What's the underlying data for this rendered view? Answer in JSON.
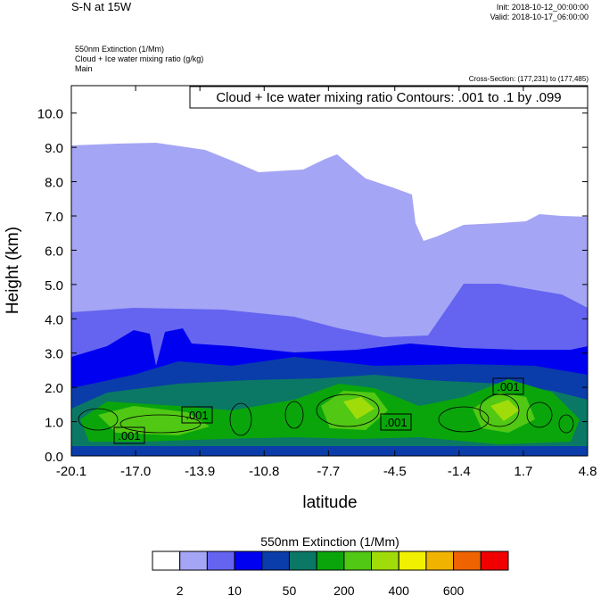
{
  "chart_data": {
    "type": "contour",
    "title": "S-N at 15W",
    "init": "Init: 2018-10-12_00:00:00",
    "valid": "Valid: 2018-10-17_06:00:00",
    "subtitles": [
      "550nm Extinction   (1/Mm)",
      "Cloud + Ice water mixing ratio   (g/kg)",
      "Main"
    ],
    "cross_section": "Cross-Section: (177,231) to (177,485)",
    "contour_note": "Cloud + Ice water mixing ratio Contours: .001 to .1 by .099",
    "contour_labels": [
      ".001",
      ".001",
      ".001",
      ".001"
    ],
    "x_label": "latitude",
    "y_label": "Height (km)",
    "xlim": [
      -20.1,
      4.8
    ],
    "xticks": [
      -20.1,
      {
        "value": -17.0,
        "label": "-17.0"
      },
      -13.9,
      -10.8,
      -7.7,
      -4.5,
      -1.4,
      1.7,
      4.8
    ],
    "ylim": [
      0,
      10.8
    ],
    "yticks": [
      {
        "value": 0,
        "label": "0.0"
      },
      {
        "value": 1,
        "label": "1.0"
      },
      {
        "value": 2,
        "label": "2.0"
      },
      {
        "value": 3,
        "label": "3.0"
      },
      {
        "value": 4,
        "label": "4.0"
      },
      {
        "value": 5,
        "label": "5.0"
      },
      {
        "value": 6,
        "label": "6.0"
      },
      {
        "value": 7,
        "label": "7.0"
      },
      {
        "value": 8,
        "label": "8.0"
      },
      {
        "value": 9,
        "label": "9.0"
      },
      {
        "value": 10,
        "label": "10.0"
      }
    ],
    "colorbar": {
      "title": "550nm Extinction  (1/Mm)",
      "colors": [
        "#ffffff",
        "#a5a5f5",
        "#6464f0",
        "#0000f0",
        "#0a3caa",
        "#0a7864",
        "#0aa50a",
        "#50c814",
        "#a0dc0a",
        "#f0f000",
        "#f0b400",
        "#f06400",
        "#f00000"
      ],
      "levels": [
        2,
        10,
        50,
        200,
        400,
        600
      ]
    }
  }
}
